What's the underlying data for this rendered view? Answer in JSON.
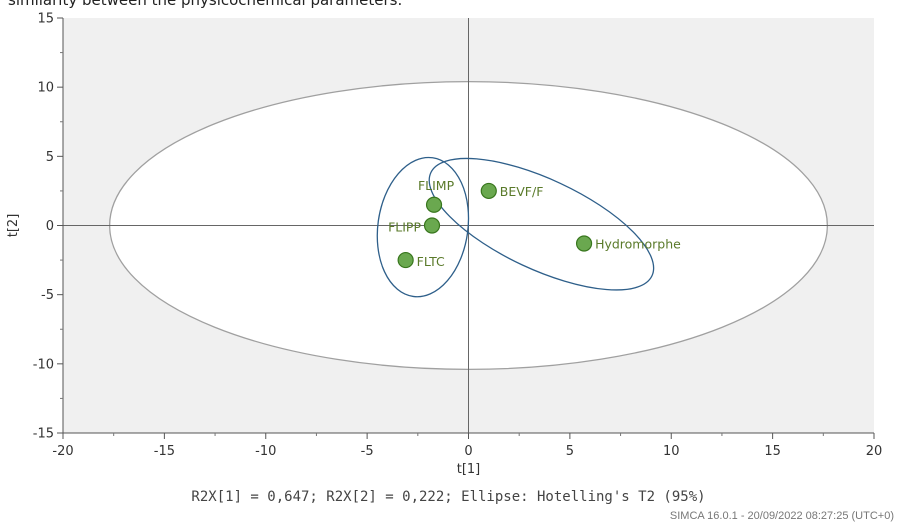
{
  "caption": "similarity between the physicochemical parameters.",
  "chart_data": {
    "type": "scatter",
    "xlabel": "t[1]",
    "ylabel": "t[2]",
    "xlim": [
      -20,
      20
    ],
    "ylim": [
      -15,
      15
    ],
    "xticks": [
      -20,
      -15,
      -10,
      -5,
      0,
      5,
      10,
      15,
      20
    ],
    "yticks": [
      -15,
      -10,
      -5,
      0,
      5,
      10,
      15
    ],
    "grid": false,
    "points": [
      {
        "label": "FLIMP",
        "x": -1.7,
        "y": 1.5
      },
      {
        "label": "FLIPP",
        "x": -1.8,
        "y": 0.0
      },
      {
        "label": "FLTC",
        "x": -3.1,
        "y": -2.5
      },
      {
        "label": "BEVF/F",
        "x": 1.0,
        "y": 2.5
      },
      {
        "label": "Hydromorphe",
        "x": 5.7,
        "y": -1.3
      }
    ],
    "ellipse": {
      "center": [
        0,
        0
      ],
      "semi_axes": [
        17.7,
        10.4
      ],
      "label": "Hotelling's T2 (95%)"
    },
    "clusters": [
      {
        "members": [
          "FLIMP",
          "FLIPP",
          "FLTC"
        ]
      },
      {
        "members": [
          "BEVF/F",
          "Hydromorphe"
        ]
      }
    ],
    "colors": {
      "point_fill": "#6aa84f",
      "point_stroke": "#38761d",
      "point_label": "#5a7a2a",
      "ellipse": "#a0a0a0",
      "cluster": "#2e5f8a",
      "outside": "#f0f0f0"
    }
  },
  "stats_line": "R2X[1] = 0,647; R2X[2] = 0,222; Ellipse: Hotelling's T2 (95%)",
  "footer": "SIMCA 16.0.1 - 20/09/2022 08:27:25 (UTC+0)"
}
